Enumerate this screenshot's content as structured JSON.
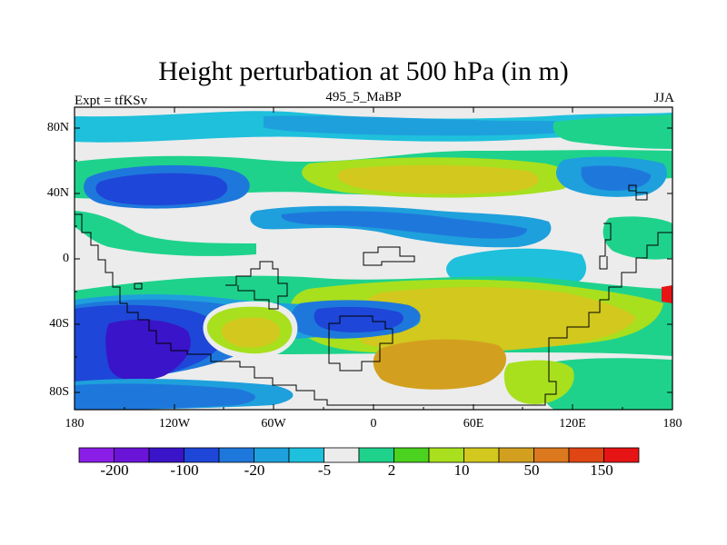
{
  "header": {
    "title": "Height perturbation at 500 hPa (in m)",
    "left_label": "Expt = tfKSv",
    "center_label": "495_5_MaBP",
    "right_label": "JJA"
  },
  "axes": {
    "y_ticks": [
      "80N",
      "40N",
      "0",
      "40S",
      "80S"
    ],
    "x_ticks": [
      "180",
      "120W",
      "60W",
      "0",
      "60E",
      "120E",
      "180"
    ]
  },
  "colorbar": {
    "colors": [
      "#8a1ee6",
      "#6a14d8",
      "#3a14c8",
      "#1e46d8",
      "#1e78dc",
      "#1ea0dc",
      "#1ec0dc",
      "#ececec",
      "#1ed28c",
      "#4ad21e",
      "#a8e01e",
      "#d2c81e",
      "#d2a01e",
      "#dc781e",
      "#e04614",
      "#e61414"
    ],
    "labels": [
      "-200",
      "-100",
      "-20",
      "-5",
      "2",
      "10",
      "50",
      "150"
    ]
  },
  "map_colors": {
    "background": "#ececec",
    "deep_negative": "#3a14c8",
    "strong_negative": "#1e46d8",
    "negative": "#1e78dc",
    "weak_negative": "#1ea0dc",
    "slight_negative": "#1ec0dc",
    "slight_positive": "#1ed28c",
    "weak_positive": "#4ad21e",
    "positive": "#a8e01e",
    "strong_positive": "#d2c81e",
    "very_strong_positive": "#d2a01e",
    "extreme_positive": "#e61414"
  }
}
